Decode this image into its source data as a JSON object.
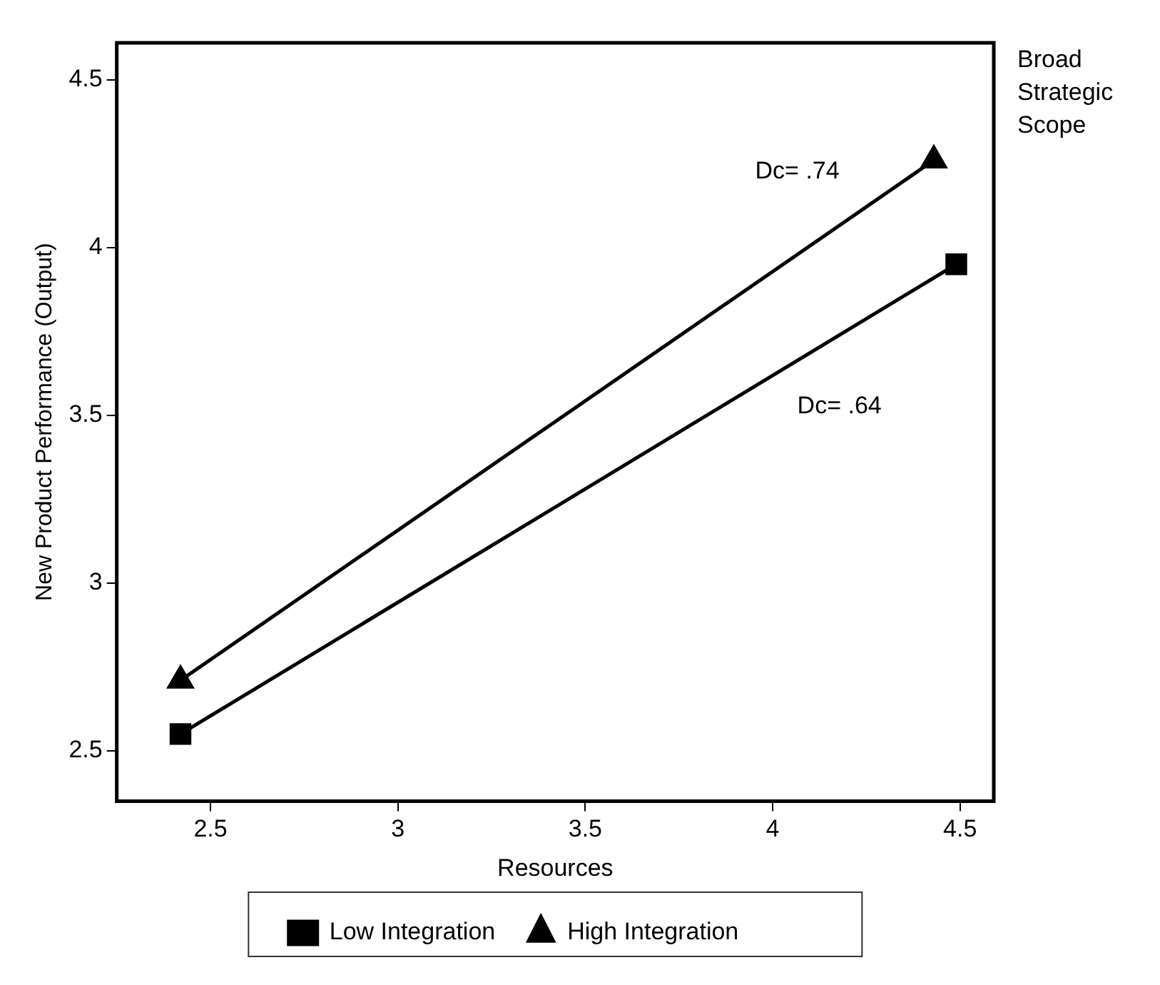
{
  "chart_data": {
    "type": "line",
    "xlabel": "Resources",
    "ylabel": "New Product Performance (Output)",
    "xlim": [
      2.25,
      4.59
    ],
    "xticks": [
      2.5,
      3,
      3.5,
      4,
      4.5
    ],
    "ylim": [
      2.35,
      4.61
    ],
    "yticks": [
      2.5,
      3,
      3.5,
      4,
      4.5
    ],
    "grid": false,
    "legend": "bottom",
    "line_style": "solid",
    "series": [
      {
        "name": "Low Integration",
        "color": "#000000",
        "marker": "square",
        "x": [
          2.42,
          4.49
        ],
        "values": [
          2.55,
          3.95
        ]
      },
      {
        "name": "High Integration",
        "color": "#000000",
        "marker": "triangle",
        "x": [
          2.42,
          4.43
        ],
        "values": [
          2.71,
          4.26
        ]
      }
    ],
    "annotations": [
      "Dc= .74",
      "Dc= .64",
      "Broad Strategic Scope"
    ]
  }
}
